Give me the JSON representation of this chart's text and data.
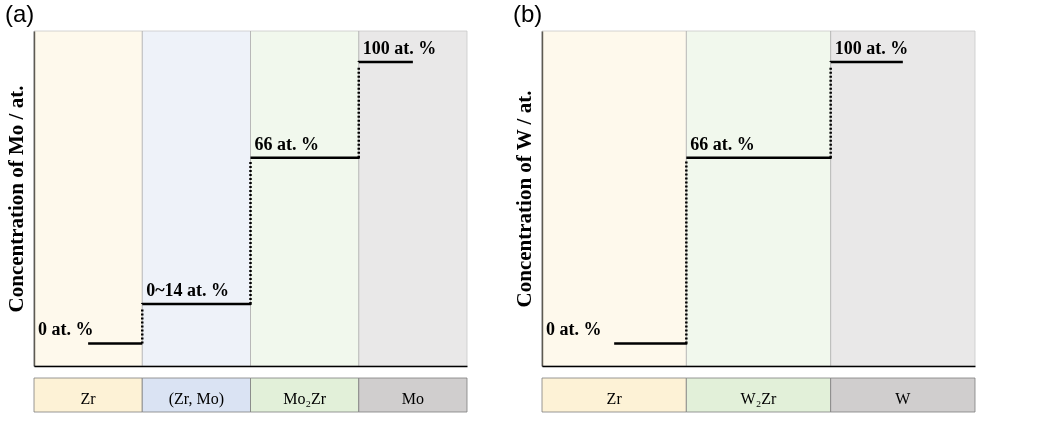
{
  "chart_data": [
    {
      "type": "step",
      "title": "(a)",
      "ylabel": "Concentration of Mo / at.",
      "categories": [
        "Zr",
        "(Zr, Mo)",
        "Mo₂Zr",
        "Mo"
      ],
      "ylim": [
        -8,
        111
      ],
      "tick_labels": "x",
      "grid": false,
      "series": [
        {
          "color": "#000000",
          "line_style": "dotted",
          "values": [
            0,
            14,
            66,
            100
          ],
          "value_labels": [
            "0 at. %",
            "0~14 at. %",
            "66 at. %",
            "100 at. %"
          ]
        }
      ],
      "bands": [
        {
          "axis": "x",
          "from": "Zr",
          "to": "Zr",
          "color": "#fdf2d6"
        },
        {
          "axis": "x",
          "from": "(Zr, Mo)",
          "to": "(Zr, Mo)",
          "color": "#dae3f3"
        },
        {
          "axis": "x",
          "from": "Mo₂Zr",
          "to": "Mo₂Zr",
          "color": "#e2f0d9"
        },
        {
          "axis": "x",
          "from": "Mo",
          "to": "Mo",
          "color": "#d0cece"
        }
      ]
    },
    {
      "type": "step",
      "title": "(b)",
      "ylabel": "Concentration of W / at.",
      "categories": [
        "Zr",
        "W₂Zr",
        "W"
      ],
      "ylim": [
        -8,
        111
      ],
      "tick_labels": "x",
      "grid": false,
      "series": [
        {
          "color": "#000000",
          "line_style": "dotted",
          "values": [
            0,
            66,
            100
          ],
          "value_labels": [
            "0 at. %",
            "66 at. %",
            "100 at. %"
          ]
        }
      ],
      "bands": [
        {
          "axis": "x",
          "from": "Zr",
          "to": "Zr",
          "color": "#fdf2d6"
        },
        {
          "axis": "x",
          "from": "W₂Zr",
          "to": "W₂Zr",
          "color": "#e2f0d9"
        },
        {
          "axis": "x",
          "from": "W",
          "to": "W",
          "color": "#d0cece"
        }
      ]
    }
  ]
}
